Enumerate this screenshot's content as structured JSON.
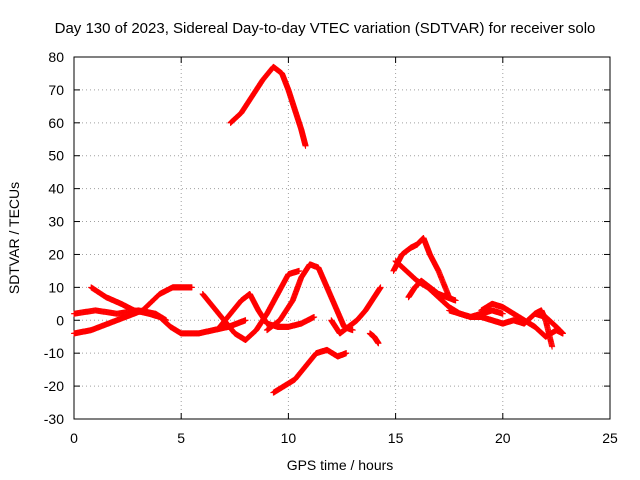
{
  "chart_data": {
    "type": "scatter",
    "title": "Day 130 of 2023, Sidereal Day-to-day VTEC variation (SDTVAR) for receiver solo",
    "xlabel": "GPS time / hours",
    "ylabel": "SDTVAR / TECUs",
    "xlim": [
      0,
      25
    ],
    "ylim": [
      -30,
      80
    ],
    "xticks": [
      0,
      5,
      10,
      15,
      20,
      25
    ],
    "yticks": [
      -30,
      -20,
      -10,
      0,
      10,
      20,
      30,
      40,
      50,
      60,
      70,
      80
    ],
    "grid": true,
    "marker": "+",
    "color": "#ff0000",
    "series": [
      {
        "name": "s1",
        "x": [
          7.3,
          7.8,
          8.3,
          8.8,
          9.3,
          9.7,
          10.0,
          10.3,
          10.6,
          10.8
        ],
        "y": [
          60,
          63,
          68,
          73,
          77,
          75,
          70,
          64,
          58,
          53
        ]
      },
      {
        "name": "s2",
        "x": [
          0.0,
          0.8,
          1.6,
          2.4,
          3.2,
          4.0,
          4.6,
          5.0,
          5.5
        ],
        "y": [
          -4,
          -3,
          -1,
          1,
          3,
          8,
          10,
          10,
          10
        ]
      },
      {
        "name": "s3",
        "x": [
          0.8,
          1.5,
          2.2,
          2.8,
          3.5,
          4.0,
          4.5,
          5.0,
          5.8,
          6.5,
          7.2,
          7.6,
          8.0
        ],
        "y": [
          10,
          7,
          5,
          3,
          2,
          1,
          -2,
          -4,
          -4,
          -3,
          -2,
          -1,
          0
        ]
      },
      {
        "name": "s4",
        "x": [
          0.0,
          1.0,
          2.0,
          3.0,
          3.8,
          4.3
        ],
        "y": [
          2,
          3,
          2,
          3,
          2,
          0
        ]
      },
      {
        "name": "s5",
        "x": [
          6.0,
          6.5,
          7.0,
          7.5,
          8.0,
          8.5,
          9.0,
          9.5,
          10.0,
          10.5
        ],
        "y": [
          8,
          4,
          0,
          -4,
          -6,
          -3,
          2,
          8,
          14,
          15
        ]
      },
      {
        "name": "s6",
        "x": [
          6.8,
          7.3,
          7.8,
          8.2,
          8.6,
          9.0,
          9.5,
          10.0,
          10.6,
          11.2
        ],
        "y": [
          -2,
          2,
          6,
          8,
          3,
          -1,
          -2,
          -2,
          -1,
          1
        ]
      },
      {
        "name": "s7",
        "x": [
          9.0,
          9.6,
          10.2,
          10.6,
          11.0,
          11.4,
          11.8,
          12.2,
          12.6,
          13.0
        ],
        "y": [
          -3,
          0,
          6,
          13,
          17,
          16,
          10,
          4,
          -2,
          -3
        ]
      },
      {
        "name": "s8",
        "x": [
          9.3,
          9.8,
          10.3,
          10.8,
          11.3,
          11.8,
          12.3,
          12.7
        ],
        "y": [
          -22,
          -20,
          -18,
          -14,
          -10,
          -9,
          -11,
          -10
        ]
      },
      {
        "name": "s9",
        "x": [
          12.0,
          12.4,
          12.8,
          13.2,
          13.6,
          14.0,
          14.3
        ],
        "y": [
          0,
          -4,
          -2,
          0,
          3,
          7,
          10
        ]
      },
      {
        "name": "s10",
        "x": [
          13.8,
          14.0,
          14.2
        ],
        "y": [
          -4,
          -5,
          -7
        ]
      },
      {
        "name": "s11",
        "x": [
          14.9,
          15.3,
          15.7,
          16.0,
          16.3,
          16.6,
          17.0,
          17.5
        ],
        "y": [
          15,
          20,
          22,
          23,
          25,
          20,
          15,
          7
        ]
      },
      {
        "name": "s12",
        "x": [
          15.0,
          15.5,
          16.0,
          16.5,
          17.0,
          17.5,
          18.0,
          18.5,
          19.0,
          19.5,
          20.0
        ],
        "y": [
          18,
          15,
          12,
          10,
          7,
          4,
          2,
          1,
          2,
          3,
          2
        ]
      },
      {
        "name": "s13",
        "x": [
          15.6,
          15.9,
          16.2,
          16.6,
          17.0,
          17.4,
          17.8
        ],
        "y": [
          7,
          10,
          12,
          10,
          8,
          7,
          6
        ]
      },
      {
        "name": "s14",
        "x": [
          17.5,
          18.0,
          18.5,
          19.0,
          19.5,
          20.0,
          20.5,
          21.0,
          21.5,
          22.0,
          22.5,
          22.8
        ],
        "y": [
          3,
          2,
          1,
          1,
          0,
          -1,
          0,
          -1,
          2,
          1,
          -2,
          -4
        ]
      },
      {
        "name": "s15",
        "x": [
          19.0,
          19.5,
          20.0,
          20.5,
          21.0,
          21.5,
          22.0,
          22.5,
          22.8
        ],
        "y": [
          3,
          5,
          4,
          2,
          0,
          -2,
          -5,
          -3,
          -4
        ]
      },
      {
        "name": "s16",
        "x": [
          21.5,
          21.8,
          22.0,
          22.3
        ],
        "y": [
          2,
          3,
          0,
          -8
        ]
      }
    ]
  }
}
